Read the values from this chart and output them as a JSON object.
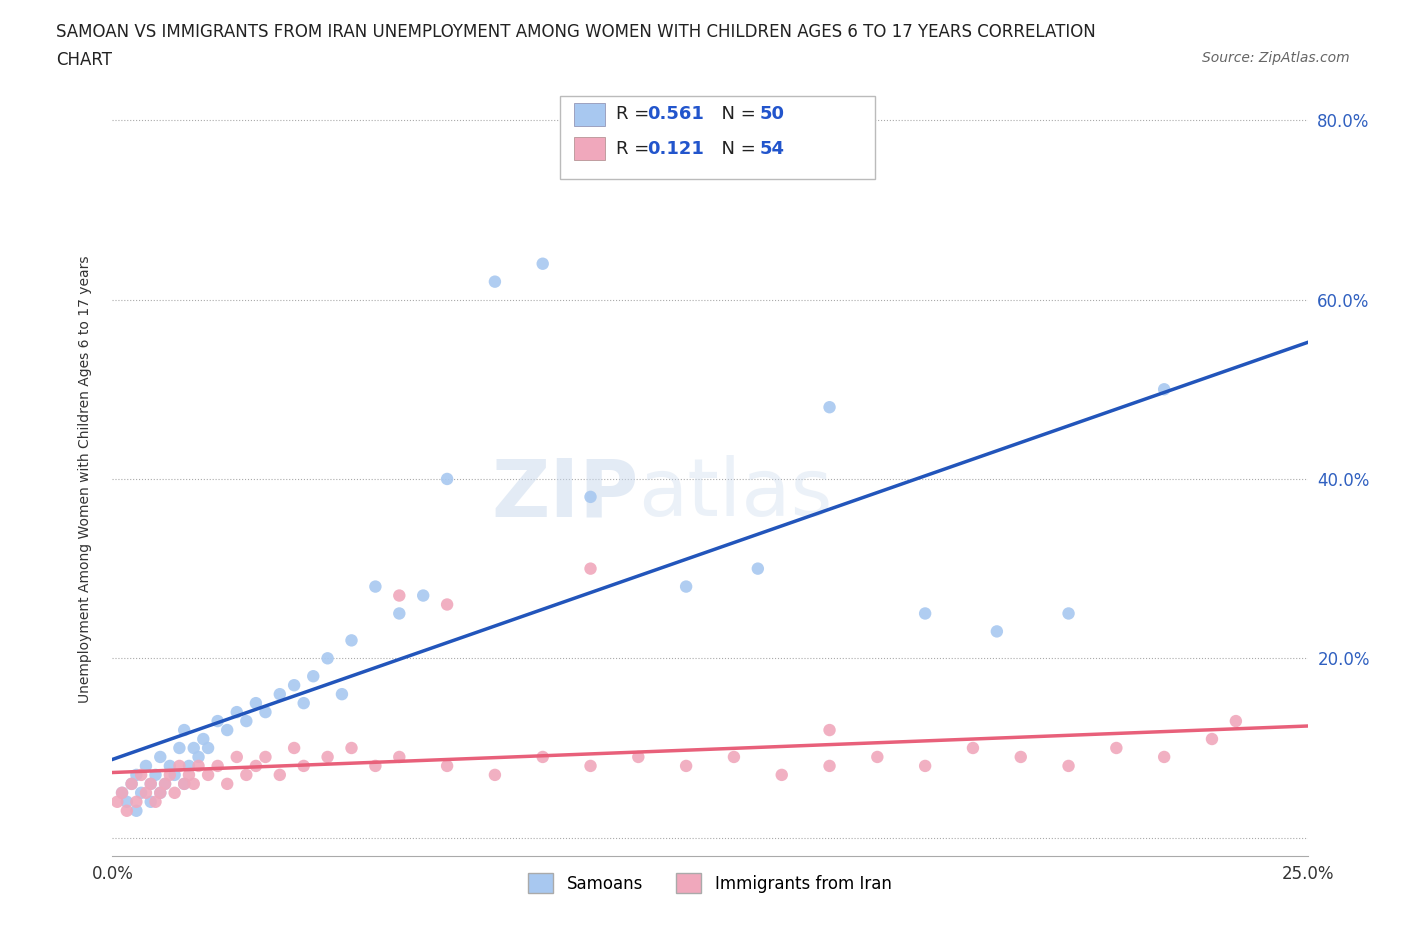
{
  "title_line1": "SAMOAN VS IMMIGRANTS FROM IRAN UNEMPLOYMENT AMONG WOMEN WITH CHILDREN AGES 6 TO 17 YEARS CORRELATION",
  "title_line2": "CHART",
  "source": "Source: ZipAtlas.com",
  "ylabel": "Unemployment Among Women with Children Ages 6 to 17 years",
  "xmin": 0.0,
  "xmax": 0.25,
  "ymin": -0.02,
  "ymax": 0.82,
  "samoan_color": "#a8c8f0",
  "iran_color": "#f0a8bc",
  "samoan_line_color": "#2255bb",
  "iran_line_color": "#e8607a",
  "legend_label_samoan": "Samoans",
  "legend_label_iran": "Immigrants from Iran",
  "samoan_x": [
    0.002,
    0.003,
    0.004,
    0.005,
    0.005,
    0.006,
    0.007,
    0.008,
    0.008,
    0.009,
    0.01,
    0.01,
    0.011,
    0.012,
    0.013,
    0.014,
    0.015,
    0.015,
    0.016,
    0.017,
    0.018,
    0.019,
    0.02,
    0.022,
    0.024,
    0.026,
    0.028,
    0.03,
    0.032,
    0.035,
    0.038,
    0.04,
    0.042,
    0.045,
    0.048,
    0.05,
    0.055,
    0.06,
    0.065,
    0.07,
    0.08,
    0.09,
    0.1,
    0.12,
    0.135,
    0.15,
    0.17,
    0.185,
    0.2,
    0.22
  ],
  "samoan_y": [
    0.05,
    0.04,
    0.06,
    0.03,
    0.07,
    0.05,
    0.08,
    0.04,
    0.06,
    0.07,
    0.05,
    0.09,
    0.06,
    0.08,
    0.07,
    0.1,
    0.06,
    0.12,
    0.08,
    0.1,
    0.09,
    0.11,
    0.1,
    0.13,
    0.12,
    0.14,
    0.13,
    0.15,
    0.14,
    0.16,
    0.17,
    0.15,
    0.18,
    0.2,
    0.16,
    0.22,
    0.28,
    0.25,
    0.27,
    0.4,
    0.62,
    0.64,
    0.38,
    0.28,
    0.3,
    0.48,
    0.25,
    0.23,
    0.25,
    0.5
  ],
  "iran_x": [
    0.001,
    0.002,
    0.003,
    0.004,
    0.005,
    0.006,
    0.007,
    0.008,
    0.009,
    0.01,
    0.011,
    0.012,
    0.013,
    0.014,
    0.015,
    0.016,
    0.017,
    0.018,
    0.02,
    0.022,
    0.024,
    0.026,
    0.028,
    0.03,
    0.032,
    0.035,
    0.038,
    0.04,
    0.045,
    0.05,
    0.055,
    0.06,
    0.07,
    0.08,
    0.09,
    0.1,
    0.11,
    0.12,
    0.13,
    0.14,
    0.15,
    0.16,
    0.17,
    0.18,
    0.19,
    0.2,
    0.21,
    0.22,
    0.23,
    0.235,
    0.06,
    0.07,
    0.1,
    0.15
  ],
  "iran_y": [
    0.04,
    0.05,
    0.03,
    0.06,
    0.04,
    0.07,
    0.05,
    0.06,
    0.04,
    0.05,
    0.06,
    0.07,
    0.05,
    0.08,
    0.06,
    0.07,
    0.06,
    0.08,
    0.07,
    0.08,
    0.06,
    0.09,
    0.07,
    0.08,
    0.09,
    0.07,
    0.1,
    0.08,
    0.09,
    0.1,
    0.08,
    0.09,
    0.08,
    0.07,
    0.09,
    0.08,
    0.09,
    0.08,
    0.09,
    0.07,
    0.08,
    0.09,
    0.08,
    0.1,
    0.09,
    0.08,
    0.1,
    0.09,
    0.11,
    0.13,
    0.27,
    0.26,
    0.3,
    0.12
  ]
}
